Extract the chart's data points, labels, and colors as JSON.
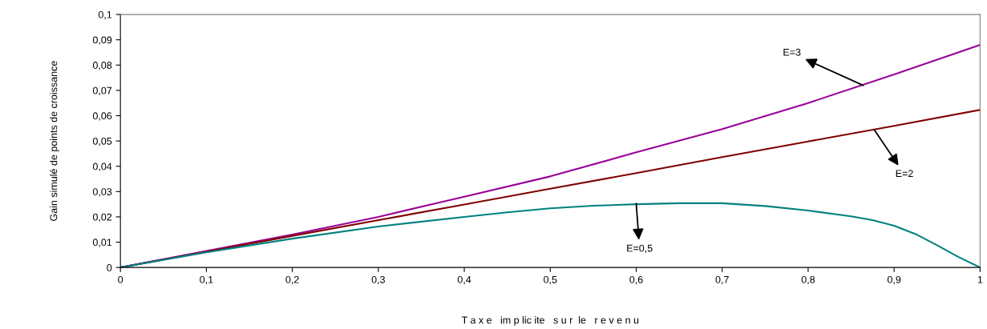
{
  "chart_data": {
    "type": "line",
    "xlabel": "T a x e   im p lic ite   s u r  le   r e v e n u",
    "ylabel": "Gain simulé de points de croissance",
    "x": [
      0,
      0.1,
      0.2,
      0.3,
      0.4,
      0.5,
      0.6,
      0.7,
      0.8,
      0.9,
      1
    ],
    "series": [
      {
        "color": "#990099",
        "values": [
          0,
          0.0065,
          0.013,
          0.02,
          0.028,
          0.036,
          0.0455,
          0.0547,
          0.065,
          0.0763,
          0.088
        ]
      },
      {
        "color": "#800000",
        "values": [
          0,
          0.0062,
          0.0125,
          0.0187,
          0.0249,
          0.0311,
          0.0373,
          0.0436,
          0.0498,
          0.056,
          0.0623
        ]
      },
      {
        "color": "#008080",
        "x": [
          0,
          0.1,
          0.2,
          0.3,
          0.4,
          0.45,
          0.5,
          0.55,
          0.6,
          0.65,
          0.7,
          0.75,
          0.8,
          0.85,
          0.875,
          0.9,
          0.925,
          0.95,
          0.975,
          1
        ],
        "values": [
          0,
          0.006,
          0.0114,
          0.0162,
          0.02,
          0.0218,
          0.0234,
          0.0244,
          0.025,
          0.0254,
          0.0254,
          0.0243,
          0.0225,
          0.0202,
          0.0187,
          0.0165,
          0.0132,
          0.0088,
          0.0041,
          0
        ]
      }
    ],
    "annotations": [
      {
        "text": "E=3",
        "x": 0.864,
        "y": 0.072
      },
      {
        "text": "E=2",
        "x": 0.877,
        "y": 0.0544
      },
      {
        "text": "E=0,5",
        "x": 0.6,
        "y": 0.0253
      }
    ],
    "xlim": [
      0,
      1
    ],
    "xticks": [
      0,
      {
        "value": 0.1,
        "label": "0,1"
      },
      {
        "value": 0.2,
        "label": "0,2"
      },
      {
        "value": 0.3,
        "label": "0,3"
      },
      {
        "value": 0.4,
        "label": "0,4"
      },
      {
        "value": 0.5,
        "label": "0,5"
      },
      {
        "value": 0.6,
        "label": "0,6"
      },
      {
        "value": 0.7,
        "label": "0,7"
      },
      {
        "value": 0.8,
        "label": "0,8"
      },
      {
        "value": 0.9,
        "label": "0,9"
      },
      1
    ],
    "ylim": [
      0,
      0.1
    ],
    "yticks": [
      0,
      {
        "value": 0.01,
        "label": "0,01"
      },
      {
        "value": 0.02,
        "label": "0,02"
      },
      {
        "value": 0.03,
        "label": "0,03"
      },
      {
        "value": 0.04,
        "label": "0,04"
      },
      {
        "value": 0.05,
        "label": "0,05"
      },
      {
        "value": 0.06,
        "label": "0,06"
      },
      {
        "value": 0.07,
        "label": "0,07"
      },
      {
        "value": 0.08,
        "label": "0,08"
      },
      {
        "value": 0.09,
        "label": "0,09"
      },
      {
        "value": 0.1,
        "label": "0,1"
      }
    ],
    "grid": false,
    "legend": false,
    "marker": "none",
    "line_style": "solid"
  }
}
